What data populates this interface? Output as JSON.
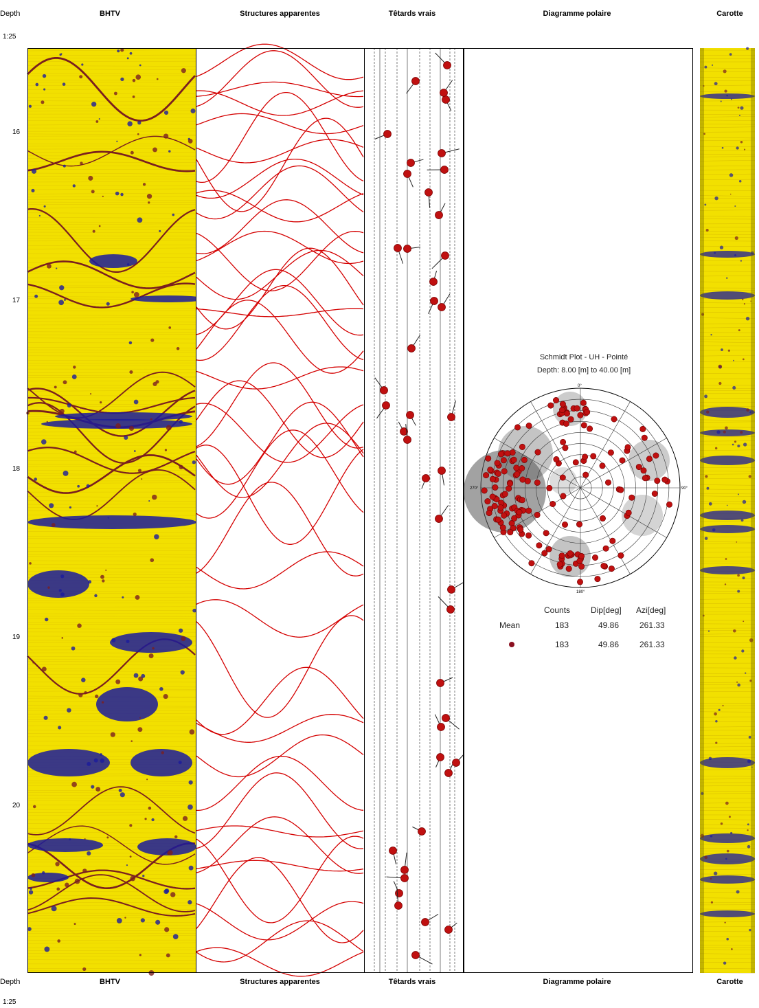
{
  "headers": {
    "depth": "Depth",
    "bhtv": "BHTV",
    "structures": "Structures apparentes",
    "tetards": "Têtards vrais",
    "diagramme": "Diagramme polaire",
    "carotte": "Carotte",
    "scale": "1:25"
  },
  "depth_ticks": [
    "16",
    "17",
    "18",
    "19",
    "20"
  ],
  "stereonet": {
    "title": "Schmidt Plot - UH - Pointé",
    "depth_range": "Depth: 8.00 [m] to 40.00 [m]",
    "labels": {
      "n": "0°",
      "e": "90°",
      "s": "180°",
      "w": "270°"
    }
  },
  "stats": {
    "columns": [
      "Counts",
      "Dip[deg]",
      "Azi[deg]"
    ],
    "rows": [
      {
        "label": "Mean",
        "counts": "183",
        "dip": "49.86",
        "azi": "261.33"
      },
      {
        "label": "",
        "counts": "183",
        "dip": "49.86",
        "azi": "261.33"
      }
    ]
  },
  "colors": {
    "image_base": "#f2e000",
    "fracture": "#7a1f1f",
    "blue": "#1b1b9c",
    "sinusoid": "#d40000",
    "tadpole": "#c01010"
  }
}
